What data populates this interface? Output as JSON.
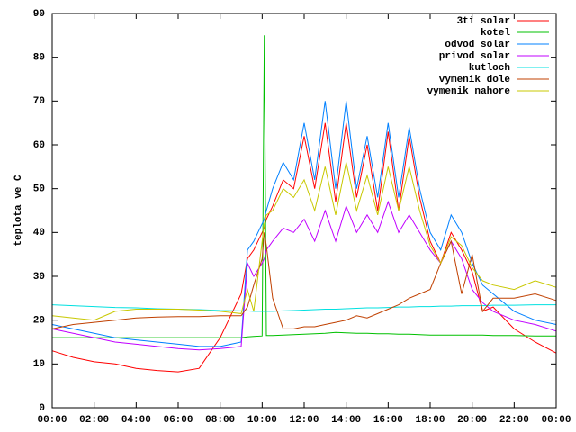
{
  "chart_data": {
    "type": "line",
    "ylabel": "teplota ve C",
    "x": [
      0,
      1,
      2,
      3,
      4,
      5,
      6,
      7,
      8,
      9,
      9.3,
      9.6,
      10,
      10.1,
      10.2,
      10.5,
      11,
      11.5,
      12,
      12.5,
      13,
      13.5,
      14,
      14.5,
      15,
      15.5,
      16,
      16.5,
      17,
      17.5,
      18,
      18.5,
      19,
      19.5,
      20,
      20.5,
      21,
      22,
      23,
      24
    ],
    "xlim": [
      0,
      24
    ],
    "xticks": [
      {
        "value": 0,
        "label": "00:00"
      },
      {
        "value": 2,
        "label": "02:00"
      },
      {
        "value": 4,
        "label": "04:00"
      },
      {
        "value": 6,
        "label": "06:00"
      },
      {
        "value": 8,
        "label": "08:00"
      },
      {
        "value": 10,
        "label": "10:00"
      },
      {
        "value": 12,
        "label": "12:00"
      },
      {
        "value": 14,
        "label": "14:00"
      },
      {
        "value": 16,
        "label": "16:00"
      },
      {
        "value": 18,
        "label": "18:00"
      },
      {
        "value": 20,
        "label": "20:00"
      },
      {
        "value": 22,
        "label": "22:00"
      },
      {
        "value": 24,
        "label": "00:00"
      }
    ],
    "ylim": [
      0,
      90
    ],
    "yticks": [
      0,
      10,
      20,
      30,
      40,
      50,
      60,
      70,
      80,
      90
    ],
    "legend": "top-right",
    "series": [
      {
        "name": "3ti solar",
        "color": "#ff0000",
        "values": [
          13,
          11.5,
          10.5,
          10,
          9,
          8.5,
          8.2,
          9,
          16,
          26,
          34,
          36,
          40,
          41,
          43,
          46,
          52,
          50,
          62,
          50,
          65,
          47,
          65,
          48,
          60,
          45,
          63,
          45,
          62,
          48,
          38,
          33,
          40,
          36,
          31,
          22,
          23,
          18,
          15,
          12.5
        ]
      },
      {
        "name": "kotel",
        "color": "#00c000",
        "values": [
          16,
          16,
          16,
          16,
          16,
          16,
          16,
          16,
          16,
          16,
          16.2,
          16.3,
          16.4,
          85,
          16.5,
          16.5,
          16.6,
          16.7,
          16.8,
          16.9,
          17,
          17.2,
          17.1,
          17,
          17,
          16.9,
          16.9,
          16.8,
          16.8,
          16.7,
          16.6,
          16.6,
          16.6,
          16.6,
          16.6,
          16.6,
          16.5,
          16.5,
          16.4,
          16.4
        ]
      },
      {
        "name": "odvod solar",
        "color": "#0080ff",
        "values": [
          19,
          18,
          17,
          16,
          15.5,
          15,
          14.5,
          14,
          14,
          15,
          36,
          38,
          42,
          43,
          45,
          50,
          56,
          52,
          65,
          52,
          70,
          50,
          70,
          50,
          62,
          48,
          65,
          48,
          64,
          50,
          40,
          36,
          44,
          40,
          33,
          28,
          26,
          22,
          20,
          19
        ]
      },
      {
        "name": "privod solar",
        "color": "#c000ff",
        "values": [
          18,
          17,
          16,
          15,
          14.5,
          14,
          13.5,
          13.2,
          13.5,
          14,
          33,
          30,
          33,
          34,
          36,
          38,
          41,
          40,
          43,
          38,
          45,
          38,
          46,
          40,
          44,
          40,
          47,
          40,
          44,
          40,
          36,
          33,
          38,
          34,
          27,
          24,
          22,
          20,
          19,
          17.5
        ]
      },
      {
        "name": "kutloch",
        "color": "#00e0e0",
        "values": [
          23.5,
          23.3,
          23.1,
          22.9,
          22.8,
          22.6,
          22.5,
          22.4,
          22.2,
          22.1,
          22.1,
          22,
          22,
          22,
          22,
          22,
          22.1,
          22.2,
          22.3,
          22.4,
          22.5,
          22.5,
          22.6,
          22.7,
          22.8,
          22.8,
          22.9,
          23,
          23,
          23.1,
          23.1,
          23.2,
          23.2,
          23.3,
          23.3,
          23.3,
          23.4,
          23.4,
          23.5,
          23.5
        ]
      },
      {
        "name": "vymenik dole",
        "color": "#c04000",
        "values": [
          18,
          19,
          19.5,
          20,
          20.5,
          20.7,
          20.8,
          20.8,
          21,
          21,
          23,
          28,
          34,
          40,
          37,
          25,
          18,
          18,
          18.5,
          18.5,
          19,
          19.5,
          20,
          21,
          20.5,
          21.5,
          22.5,
          23.5,
          25,
          26,
          27,
          33,
          38,
          26,
          35,
          22,
          25,
          25,
          26,
          24.5
        ]
      },
      {
        "name": "vymenik nahore",
        "color": "#c8c800",
        "values": [
          21,
          20.5,
          20,
          22,
          22.5,
          22.5,
          22.5,
          22.3,
          22,
          21.5,
          27,
          22,
          38,
          42,
          44,
          45,
          50,
          48,
          52,
          45,
          55,
          44,
          56,
          45,
          53,
          44,
          55,
          45,
          55,
          45,
          37,
          33,
          39,
          37,
          32,
          29,
          28,
          27,
          29,
          27.5
        ]
      }
    ]
  }
}
